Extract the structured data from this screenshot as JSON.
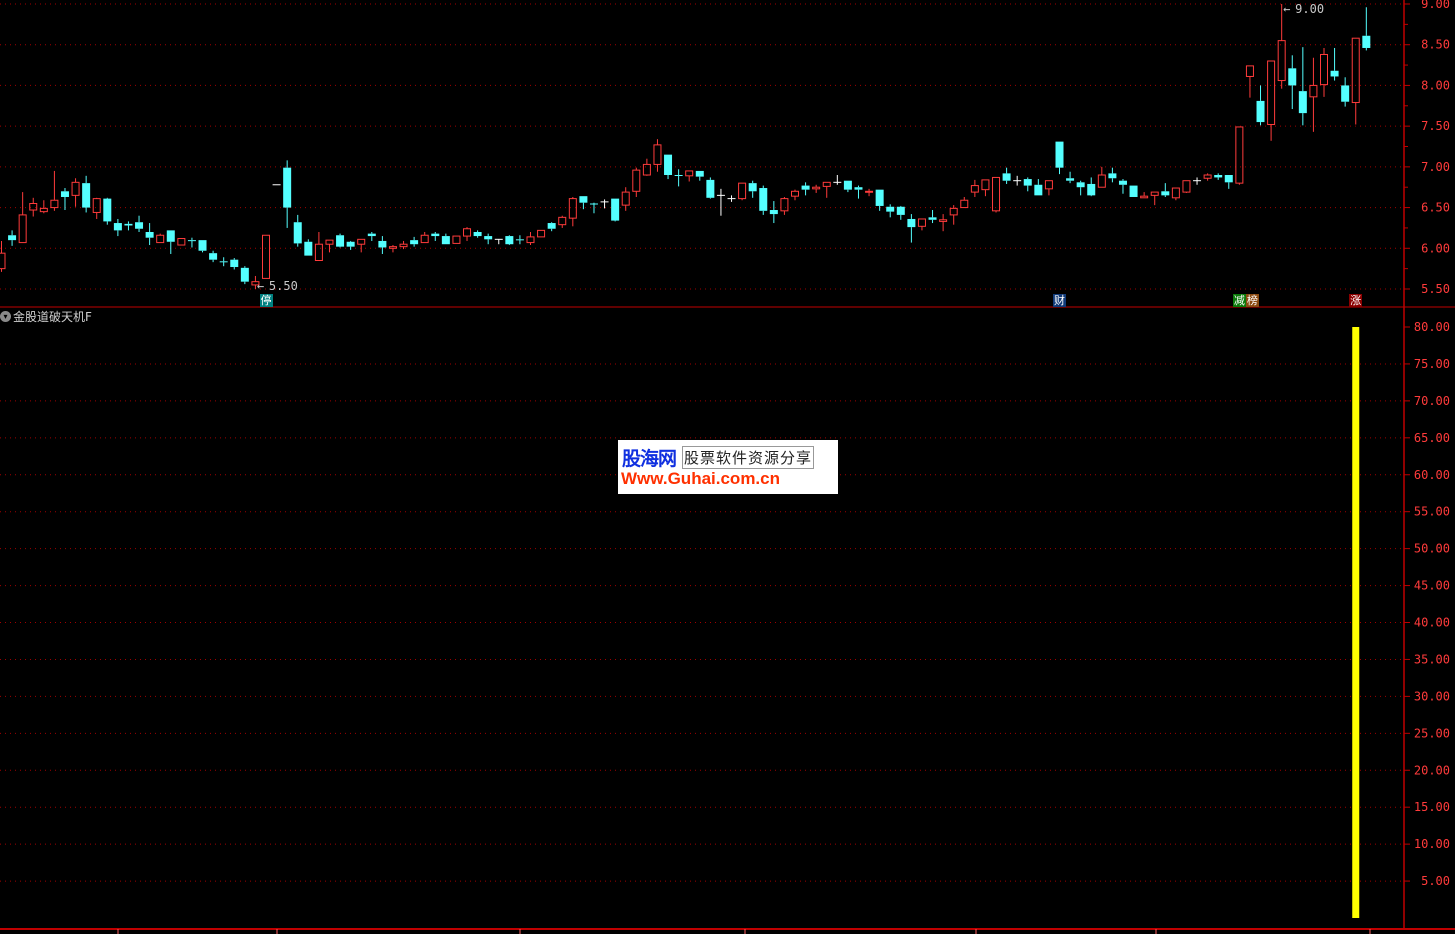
{
  "indicator_title": "金股道破天机F",
  "watermark": {
    "brand": "股海网",
    "slogan": "股票软件资源分享",
    "url": "Www.Guhai.com.cn"
  },
  "colors": {
    "up": "#ff3b3b",
    "down": "#54ffff",
    "doji": "#ffffff",
    "grid": "#a00000",
    "axis": "#c00000",
    "indicator_bar": "#ffff00"
  },
  "markers": [
    {
      "candle": 26,
      "text": "停",
      "bg": "#008080"
    },
    {
      "candle": 101,
      "text": "财",
      "bg": "#103a78"
    },
    {
      "candle": 118,
      "text": "减",
      "bg": "#0a7a0a"
    },
    {
      "candle": 119,
      "text": "榜",
      "bg": "#8a4a10"
    },
    {
      "candle": 129,
      "text": "涨",
      "bg": "#8a0000"
    }
  ],
  "chart_data": [
    {
      "type": "candlestick",
      "ylim": [
        5.5,
        9.0
      ],
      "yticks": [
        "9.00",
        "8.50",
        "8.00",
        "7.50",
        "7.00",
        "6.50",
        "6.00",
        "5.50"
      ],
      "grid": true,
      "annotations": [
        {
          "candle": 122,
          "text": "9.00",
          "kind": "high"
        },
        {
          "candle": 25,
          "text": "5.50",
          "kind": "low"
        }
      ],
      "ohlc": [
        [
          5.75,
          6.09,
          5.71,
          5.94
        ],
        [
          6.16,
          6.22,
          6.03,
          6.1
        ],
        [
          6.07,
          6.69,
          6.07,
          6.41
        ],
        [
          6.47,
          6.62,
          6.39,
          6.55
        ],
        [
          6.45,
          6.59,
          6.43,
          6.49
        ],
        [
          6.5,
          6.95,
          6.46,
          6.59
        ],
        [
          6.7,
          6.74,
          6.47,
          6.63
        ],
        [
          6.65,
          6.86,
          6.51,
          6.81
        ],
        [
          6.8,
          6.89,
          6.44,
          6.5
        ],
        [
          6.44,
          6.62,
          6.36,
          6.61
        ],
        [
          6.61,
          6.62,
          6.29,
          6.33
        ],
        [
          6.31,
          6.36,
          6.15,
          6.22
        ],
        [
          6.3,
          6.33,
          6.22,
          6.28
        ],
        [
          6.32,
          6.4,
          6.2,
          6.24
        ],
        [
          6.2,
          6.31,
          6.04,
          6.13
        ],
        [
          6.07,
          6.18,
          6.07,
          6.16
        ],
        [
          6.22,
          6.22,
          5.93,
          6.08
        ],
        [
          6.04,
          6.12,
          6.04,
          6.12
        ],
        [
          6.1,
          6.13,
          6.01,
          6.09
        ],
        [
          6.1,
          6.1,
          5.95,
          5.97
        ],
        [
          5.94,
          5.97,
          5.83,
          5.86
        ],
        [
          5.84,
          5.89,
          5.78,
          5.83
        ],
        [
          5.86,
          5.88,
          5.74,
          5.77
        ],
        [
          5.76,
          5.78,
          5.56,
          5.59
        ],
        [
          5.55,
          5.66,
          5.5,
          5.59
        ],
        [
          5.63,
          6.16,
          5.63,
          6.16
        ],
        [
          6.78,
          6.78,
          6.78,
          6.78
        ],
        [
          6.99,
          7.08,
          6.25,
          6.5
        ],
        [
          6.32,
          6.41,
          6.02,
          6.06
        ],
        [
          6.08,
          6.11,
          5.91,
          5.91
        ],
        [
          5.85,
          6.2,
          5.85,
          6.05
        ],
        [
          6.05,
          6.1,
          5.95,
          6.1
        ],
        [
          6.16,
          6.18,
          6.01,
          6.02
        ],
        [
          6.08,
          6.09,
          5.98,
          6.02
        ],
        [
          6.05,
          6.11,
          5.95,
          6.11
        ],
        [
          6.18,
          6.2,
          6.09,
          6.15
        ],
        [
          6.09,
          6.15,
          5.93,
          6.01
        ],
        [
          6.0,
          6.04,
          5.95,
          6.02
        ],
        [
          6.02,
          6.09,
          5.99,
          6.05
        ],
        [
          6.1,
          6.14,
          6.02,
          6.05
        ],
        [
          6.07,
          6.2,
          6.07,
          6.16
        ],
        [
          6.18,
          6.2,
          6.09,
          6.15
        ],
        [
          6.15,
          6.18,
          6.05,
          6.05
        ],
        [
          6.06,
          6.15,
          6.06,
          6.15
        ],
        [
          6.15,
          6.26,
          6.09,
          6.24
        ],
        [
          6.2,
          6.22,
          6.13,
          6.15
        ],
        [
          6.15,
          6.18,
          6.05,
          6.11
        ],
        [
          6.11,
          6.11,
          6.05,
          6.11
        ],
        [
          6.15,
          6.16,
          6.04,
          6.05
        ],
        [
          6.11,
          6.16,
          6.05,
          6.1
        ],
        [
          6.07,
          6.2,
          6.04,
          6.14
        ],
        [
          6.14,
          6.22,
          6.14,
          6.22
        ],
        [
          6.31,
          6.32,
          6.21,
          6.24
        ],
        [
          6.29,
          6.4,
          6.25,
          6.38
        ],
        [
          6.37,
          6.63,
          6.27,
          6.61
        ],
        [
          6.64,
          6.64,
          6.48,
          6.56
        ],
        [
          6.55,
          6.56,
          6.43,
          6.54
        ],
        [
          6.57,
          6.6,
          6.49,
          6.57
        ],
        [
          6.61,
          6.61,
          6.33,
          6.34
        ],
        [
          6.53,
          6.75,
          6.46,
          6.69
        ],
        [
          6.7,
          6.99,
          6.63,
          6.96
        ],
        [
          6.9,
          7.1,
          6.89,
          7.03
        ],
        [
          7.03,
          7.34,
          6.94,
          7.27
        ],
        [
          7.15,
          7.15,
          6.85,
          6.9
        ],
        [
          6.9,
          6.97,
          6.76,
          6.89
        ],
        [
          6.89,
          6.95,
          6.82,
          6.95
        ],
        [
          6.95,
          6.95,
          6.83,
          6.88
        ],
        [
          6.84,
          6.87,
          6.61,
          6.62
        ],
        [
          6.65,
          6.73,
          6.4,
          6.65
        ],
        [
          6.61,
          6.65,
          6.57,
          6.61
        ],
        [
          6.61,
          6.8,
          6.59,
          6.8
        ],
        [
          6.8,
          6.83,
          6.62,
          6.7
        ],
        [
          6.74,
          6.77,
          6.41,
          6.46
        ],
        [
          6.47,
          6.58,
          6.31,
          6.42
        ],
        [
          6.46,
          6.63,
          6.41,
          6.61
        ],
        [
          6.64,
          6.72,
          6.59,
          6.7
        ],
        [
          6.77,
          6.81,
          6.65,
          6.72
        ],
        [
          6.73,
          6.78,
          6.68,
          6.75
        ],
        [
          6.76,
          6.81,
          6.62,
          6.81
        ],
        [
          6.81,
          6.9,
          6.78,
          6.81
        ],
        [
          6.83,
          6.83,
          6.69,
          6.72
        ],
        [
          6.75,
          6.77,
          6.61,
          6.72
        ],
        [
          6.69,
          6.73,
          6.64,
          6.7
        ],
        [
          6.72,
          6.72,
          6.46,
          6.52
        ],
        [
          6.51,
          6.54,
          6.38,
          6.45
        ],
        [
          6.51,
          6.52,
          6.35,
          6.41
        ],
        [
          6.36,
          6.42,
          6.07,
          6.26
        ],
        [
          6.27,
          6.36,
          6.22,
          6.36
        ],
        [
          6.38,
          6.47,
          6.31,
          6.35
        ],
        [
          6.33,
          6.42,
          6.21,
          6.35
        ],
        [
          6.41,
          6.53,
          6.29,
          6.49
        ],
        [
          6.5,
          6.63,
          6.5,
          6.59
        ],
        [
          6.69,
          6.84,
          6.63,
          6.77
        ],
        [
          6.72,
          6.84,
          6.64,
          6.84
        ],
        [
          6.46,
          6.87,
          6.44,
          6.87
        ],
        [
          6.92,
          6.99,
          6.79,
          6.83
        ],
        [
          6.83,
          6.89,
          6.77,
          6.83
        ],
        [
          6.85,
          6.87,
          6.7,
          6.77
        ],
        [
          6.78,
          6.85,
          6.65,
          6.65
        ],
        [
          6.73,
          6.83,
          6.65,
          6.83
        ],
        [
          7.31,
          7.31,
          6.91,
          6.99
        ],
        [
          6.86,
          6.94,
          6.8,
          6.83
        ],
        [
          6.81,
          6.83,
          6.65,
          6.75
        ],
        [
          6.79,
          6.87,
          6.64,
          6.65
        ],
        [
          6.75,
          7.0,
          6.75,
          6.9
        ],
        [
          6.92,
          6.99,
          6.81,
          6.86
        ],
        [
          6.83,
          6.85,
          6.67,
          6.78
        ],
        [
          6.77,
          6.77,
          6.63,
          6.63
        ],
        [
          6.62,
          6.69,
          6.62,
          6.64
        ],
        [
          6.65,
          6.69,
          6.53,
          6.69
        ],
        [
          6.7,
          6.8,
          6.63,
          6.65
        ],
        [
          6.62,
          6.74,
          6.59,
          6.74
        ],
        [
          6.69,
          6.83,
          6.68,
          6.83
        ],
        [
          6.83,
          6.87,
          6.78,
          6.83
        ],
        [
          6.86,
          6.92,
          6.83,
          6.9
        ],
        [
          6.9,
          6.92,
          6.84,
          6.87
        ],
        [
          6.9,
          6.9,
          6.73,
          6.81
        ],
        [
          6.8,
          7.49,
          6.78,
          7.49
        ],
        [
          8.11,
          8.24,
          7.85,
          8.24
        ],
        [
          7.81,
          8.0,
          7.51,
          7.55
        ],
        [
          7.52,
          8.3,
          7.32,
          8.3
        ],
        [
          8.06,
          9.0,
          7.96,
          8.55
        ],
        [
          8.21,
          8.37,
          7.71,
          8.0
        ],
        [
          7.93,
          8.47,
          7.51,
          7.66
        ],
        [
          7.86,
          8.34,
          7.43,
          8.0
        ],
        [
          8.01,
          8.46,
          7.86,
          8.38
        ],
        [
          8.18,
          8.46,
          8.06,
          8.11
        ],
        [
          8.0,
          8.1,
          7.74,
          7.8
        ],
        [
          7.79,
          8.58,
          7.52,
          8.58
        ],
        [
          8.61,
          8.96,
          8.43,
          8.46
        ]
      ]
    },
    {
      "type": "bar",
      "title": "金股道破天机F",
      "ylim": [
        0,
        80
      ],
      "yticks": [
        "80.00",
        "75.00",
        "70.00",
        "65.00",
        "60.00",
        "55.00",
        "50.00",
        "45.00",
        "40.00",
        "35.00",
        "30.00",
        "25.00",
        "20.00",
        "15.00",
        "10.00",
        "5.00"
      ],
      "grid": true,
      "bars": [
        {
          "candle": 129,
          "value": 80
        }
      ]
    }
  ]
}
